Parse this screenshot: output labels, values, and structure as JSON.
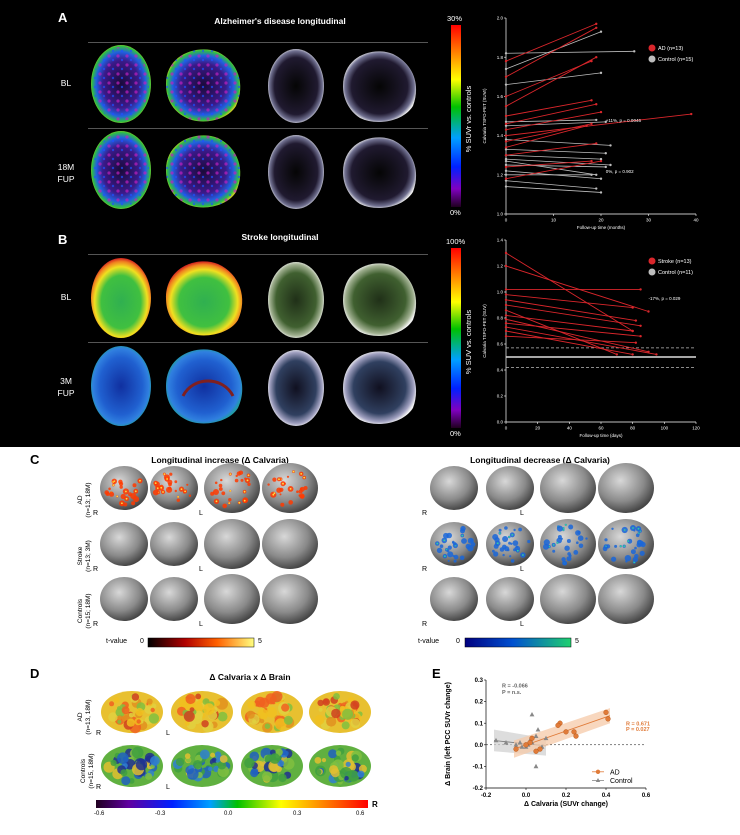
{
  "panels": {
    "A": {
      "letter": "A",
      "title": "Alzheimer's disease longitudinal",
      "row1": "BL",
      "row2a": "18M",
      "row2b": "FUP",
      "cbar_top": "30%",
      "cbar_bottom": "0%",
      "cbar_label": "% SUVr vs. controls"
    },
    "B": {
      "letter": "B",
      "title": "Stroke longitudinal",
      "row1": "BL",
      "row2a": "3M",
      "row2b": "FUP",
      "cbar_top": "100%",
      "cbar_bottom": "0%",
      "cbar_label": "% SUV vs. controls"
    },
    "C": {
      "letter": "C",
      "title_left": "Longitudinal increase (Δ Calvaria)",
      "title_right": "Longitudinal decrease (Δ Calvaria)",
      "row_ad_a": "AD",
      "row_ad_b": "(n=13; 18M)",
      "row_stroke_a": "Stroke",
      "row_stroke_b": "(n=13; 3M)",
      "row_ctrl_a": "Controls",
      "row_ctrl_b": "(n=15; 18M)",
      "side_r": "R",
      "side_l": "L",
      "tvalue": "t-value",
      "scale_min": "0",
      "scale_max": "5"
    },
    "D": {
      "letter": "D",
      "title": "Δ Calvaria x Δ Brain",
      "row_ad_a": "AD",
      "row_ad_b": "(n=13, 18M)",
      "row_ctrl_a": "Controls",
      "row_ctrl_b": "(n=15, 18M)",
      "side_r": "R",
      "side_l": "L",
      "scale_ticks": [
        "-0.6",
        "-0.3",
        "0.0",
        "0.3",
        "0.6"
      ],
      "scale_end": "R"
    },
    "E": {
      "letter": "E"
    }
  },
  "colors": {
    "ad": "#d9262b",
    "control": "#bdbdbd",
    "ad_e": "#e07b39",
    "control_e": "#888888"
  },
  "chart_data": [
    {
      "id": "A-plot",
      "type": "line",
      "xlabel": "Follow-up time (months)",
      "ylabel": "Calvaria TSPO-PET (SUVr)",
      "xlim": [
        0,
        40
      ],
      "ylim": [
        1.0,
        2.0
      ],
      "xticks": [
        "0",
        "10",
        "20",
        "30",
        "40"
      ],
      "yticks": [
        "1.0",
        "1.2",
        "1.4",
        "1.6",
        "1.8",
        "2.0"
      ],
      "legend": [
        "AD (n=13)",
        "Control (n=15)"
      ],
      "annotations": [
        {
          "text": "+11%, p = 0.0046",
          "x": 21,
          "y": 1.47
        },
        {
          "text": "0%, p = 0.902",
          "x": 21,
          "y": 1.21
        }
      ],
      "ad_pairs": [
        [
          0,
          1.78,
          19,
          1.97
        ],
        [
          0,
          1.7,
          19,
          1.95
        ],
        [
          0,
          1.6,
          18,
          1.78
        ],
        [
          0,
          1.55,
          19,
          1.8
        ],
        [
          0,
          1.5,
          18,
          1.58
        ],
        [
          0,
          1.46,
          19,
          1.56
        ],
        [
          0,
          1.43,
          20,
          1.52
        ],
        [
          0,
          1.4,
          39,
          1.51
        ],
        [
          0,
          1.37,
          18,
          1.46
        ],
        [
          0,
          1.34,
          17,
          1.45
        ],
        [
          0,
          1.3,
          19,
          1.36
        ],
        [
          0,
          1.24,
          18,
          1.27
        ],
        [
          0,
          1.18,
          20,
          1.27
        ]
      ],
      "control_pairs": [
        [
          0,
          1.82,
          27,
          1.83
        ],
        [
          0,
          1.74,
          20,
          1.93
        ],
        [
          0,
          1.66,
          20,
          1.72
        ],
        [
          0,
          1.47,
          19,
          1.48
        ],
        [
          0,
          1.45,
          21,
          1.47
        ],
        [
          0,
          1.38,
          22,
          1.35
        ],
        [
          0,
          1.3,
          20,
          1.28
        ],
        [
          0,
          1.27,
          19,
          1.2
        ],
        [
          0,
          1.25,
          21,
          1.24
        ],
        [
          0,
          1.22,
          20,
          1.18
        ],
        [
          0,
          1.2,
          18,
          1.2
        ],
        [
          0,
          1.17,
          19,
          1.13
        ],
        [
          0,
          1.14,
          20,
          1.11
        ],
        [
          0,
          1.28,
          22,
          1.25
        ],
        [
          0,
          1.33,
          21,
          1.31
        ]
      ]
    },
    {
      "id": "B-plot",
      "type": "line",
      "xlabel": "Follow-up time (days)",
      "ylabel": "Calvaria TSPO-PET (SUV)",
      "xlim": [
        0,
        120
      ],
      "ylim": [
        0.0,
        1.4
      ],
      "xticks": [
        "0",
        "20",
        "40",
        "60",
        "80",
        "100",
        "120"
      ],
      "yticks": [
        "0.0",
        "0.2",
        "0.4",
        "0.6",
        "0.8",
        "1.0",
        "1.2",
        "1.4"
      ],
      "legend": [
        "Stroke (n=13)",
        "Control (n=11)"
      ],
      "annotations": [
        {
          "text": "-17%, p = 0.029",
          "x": 90,
          "y": 0.94
        }
      ],
      "control_band": [
        0.42,
        0.57
      ],
      "stroke_pairs": [
        [
          0,
          1.3,
          80,
          0.7
        ],
        [
          0,
          1.2,
          90,
          0.85
        ],
        [
          0,
          1.02,
          85,
          1.02
        ],
        [
          0,
          0.98,
          80,
          0.88
        ],
        [
          0,
          0.94,
          82,
          0.78
        ],
        [
          0,
          0.9,
          85,
          0.74
        ],
        [
          0,
          0.86,
          70,
          0.52
        ],
        [
          0,
          0.82,
          80,
          0.7
        ],
        [
          0,
          0.79,
          90,
          0.54
        ],
        [
          0,
          0.76,
          85,
          0.66
        ],
        [
          0,
          0.73,
          95,
          0.52
        ],
        [
          0,
          0.7,
          80,
          0.52
        ],
        [
          0,
          0.66,
          82,
          0.61
        ]
      ]
    },
    {
      "id": "E-plot",
      "type": "scatter",
      "xlabel": "Δ Calvaria (SUVr change)",
      "ylabel": "Δ Brain (left PCC SUVr change)",
      "xlim": [
        -0.2,
        0.6
      ],
      "ylim": [
        -0.2,
        0.3
      ],
      "xticks": [
        "-0.2",
        "0.0",
        "0.2",
        "0.4",
        "0.6"
      ],
      "yticks": [
        "-0.2",
        "-0.1",
        "0.0",
        "0.1",
        "0.2",
        "0.3"
      ],
      "legend": [
        "AD",
        "Control"
      ],
      "stats_control": [
        "R = -0.066",
        "P = n.s."
      ],
      "stats_ad": [
        "R = 0.671",
        "P = 0.027"
      ],
      "ad_points": [
        [
          0.4,
          0.15
        ],
        [
          0.41,
          0.12
        ],
        [
          0.24,
          0.06
        ],
        [
          0.25,
          0.04
        ],
        [
          0.2,
          0.06
        ],
        [
          0.17,
          0.1
        ],
        [
          0.16,
          0.09
        ],
        [
          0.07,
          -0.02
        ],
        [
          0.05,
          -0.03
        ],
        [
          0.03,
          0.03
        ],
        [
          0.02,
          0.01
        ],
        [
          0.0,
          0.0
        ],
        [
          -0.05,
          -0.02
        ]
      ],
      "control_points": [
        [
          -0.15,
          0.02
        ],
        [
          -0.1,
          0.01
        ],
        [
          -0.05,
          0.0
        ],
        [
          -0.03,
          0.01
        ],
        [
          0.0,
          -0.01
        ],
        [
          0.03,
          0.01
        ],
        [
          0.05,
          0.04
        ],
        [
          0.06,
          0.07
        ],
        [
          0.1,
          0.03
        ],
        [
          0.08,
          -0.01
        ],
        [
          0.05,
          -0.1
        ],
        [
          0.03,
          0.14
        ],
        [
          0.02,
          0.02
        ],
        [
          -0.02,
          -0.01
        ],
        [
          0.01,
          0.0
        ]
      ]
    }
  ]
}
